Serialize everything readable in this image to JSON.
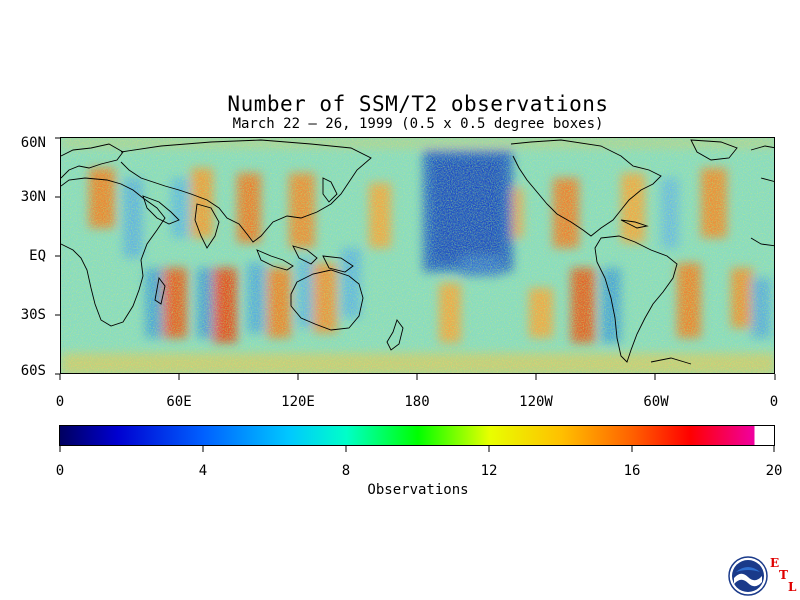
{
  "title": "Number of SSM/T2 observations",
  "subtitle": "March 22 – 26, 1999 (0.5 x 0.5 degree boxes)",
  "lat_labels": [
    "60N",
    "30N",
    "EQ",
    "30S",
    "60S"
  ],
  "lon_labels": [
    "0",
    "60E",
    "120E",
    "180",
    "120W",
    "60W",
    "0"
  ],
  "colorbar": {
    "ticks": [
      "0",
      "4",
      "8",
      "12",
      "16",
      "20"
    ],
    "label": "Observations",
    "range": [
      0,
      20
    ],
    "colors": [
      "#000080",
      "#0000ff",
      "#00a0ff",
      "#00ffff",
      "#00ff00",
      "#ffff00",
      "#ffa000",
      "#ff4000",
      "#ff0000",
      "#ff00a0"
    ]
  },
  "logo": {
    "name": "NOAA",
    "etl_letters": [
      "E",
      "T",
      "L"
    ]
  }
}
